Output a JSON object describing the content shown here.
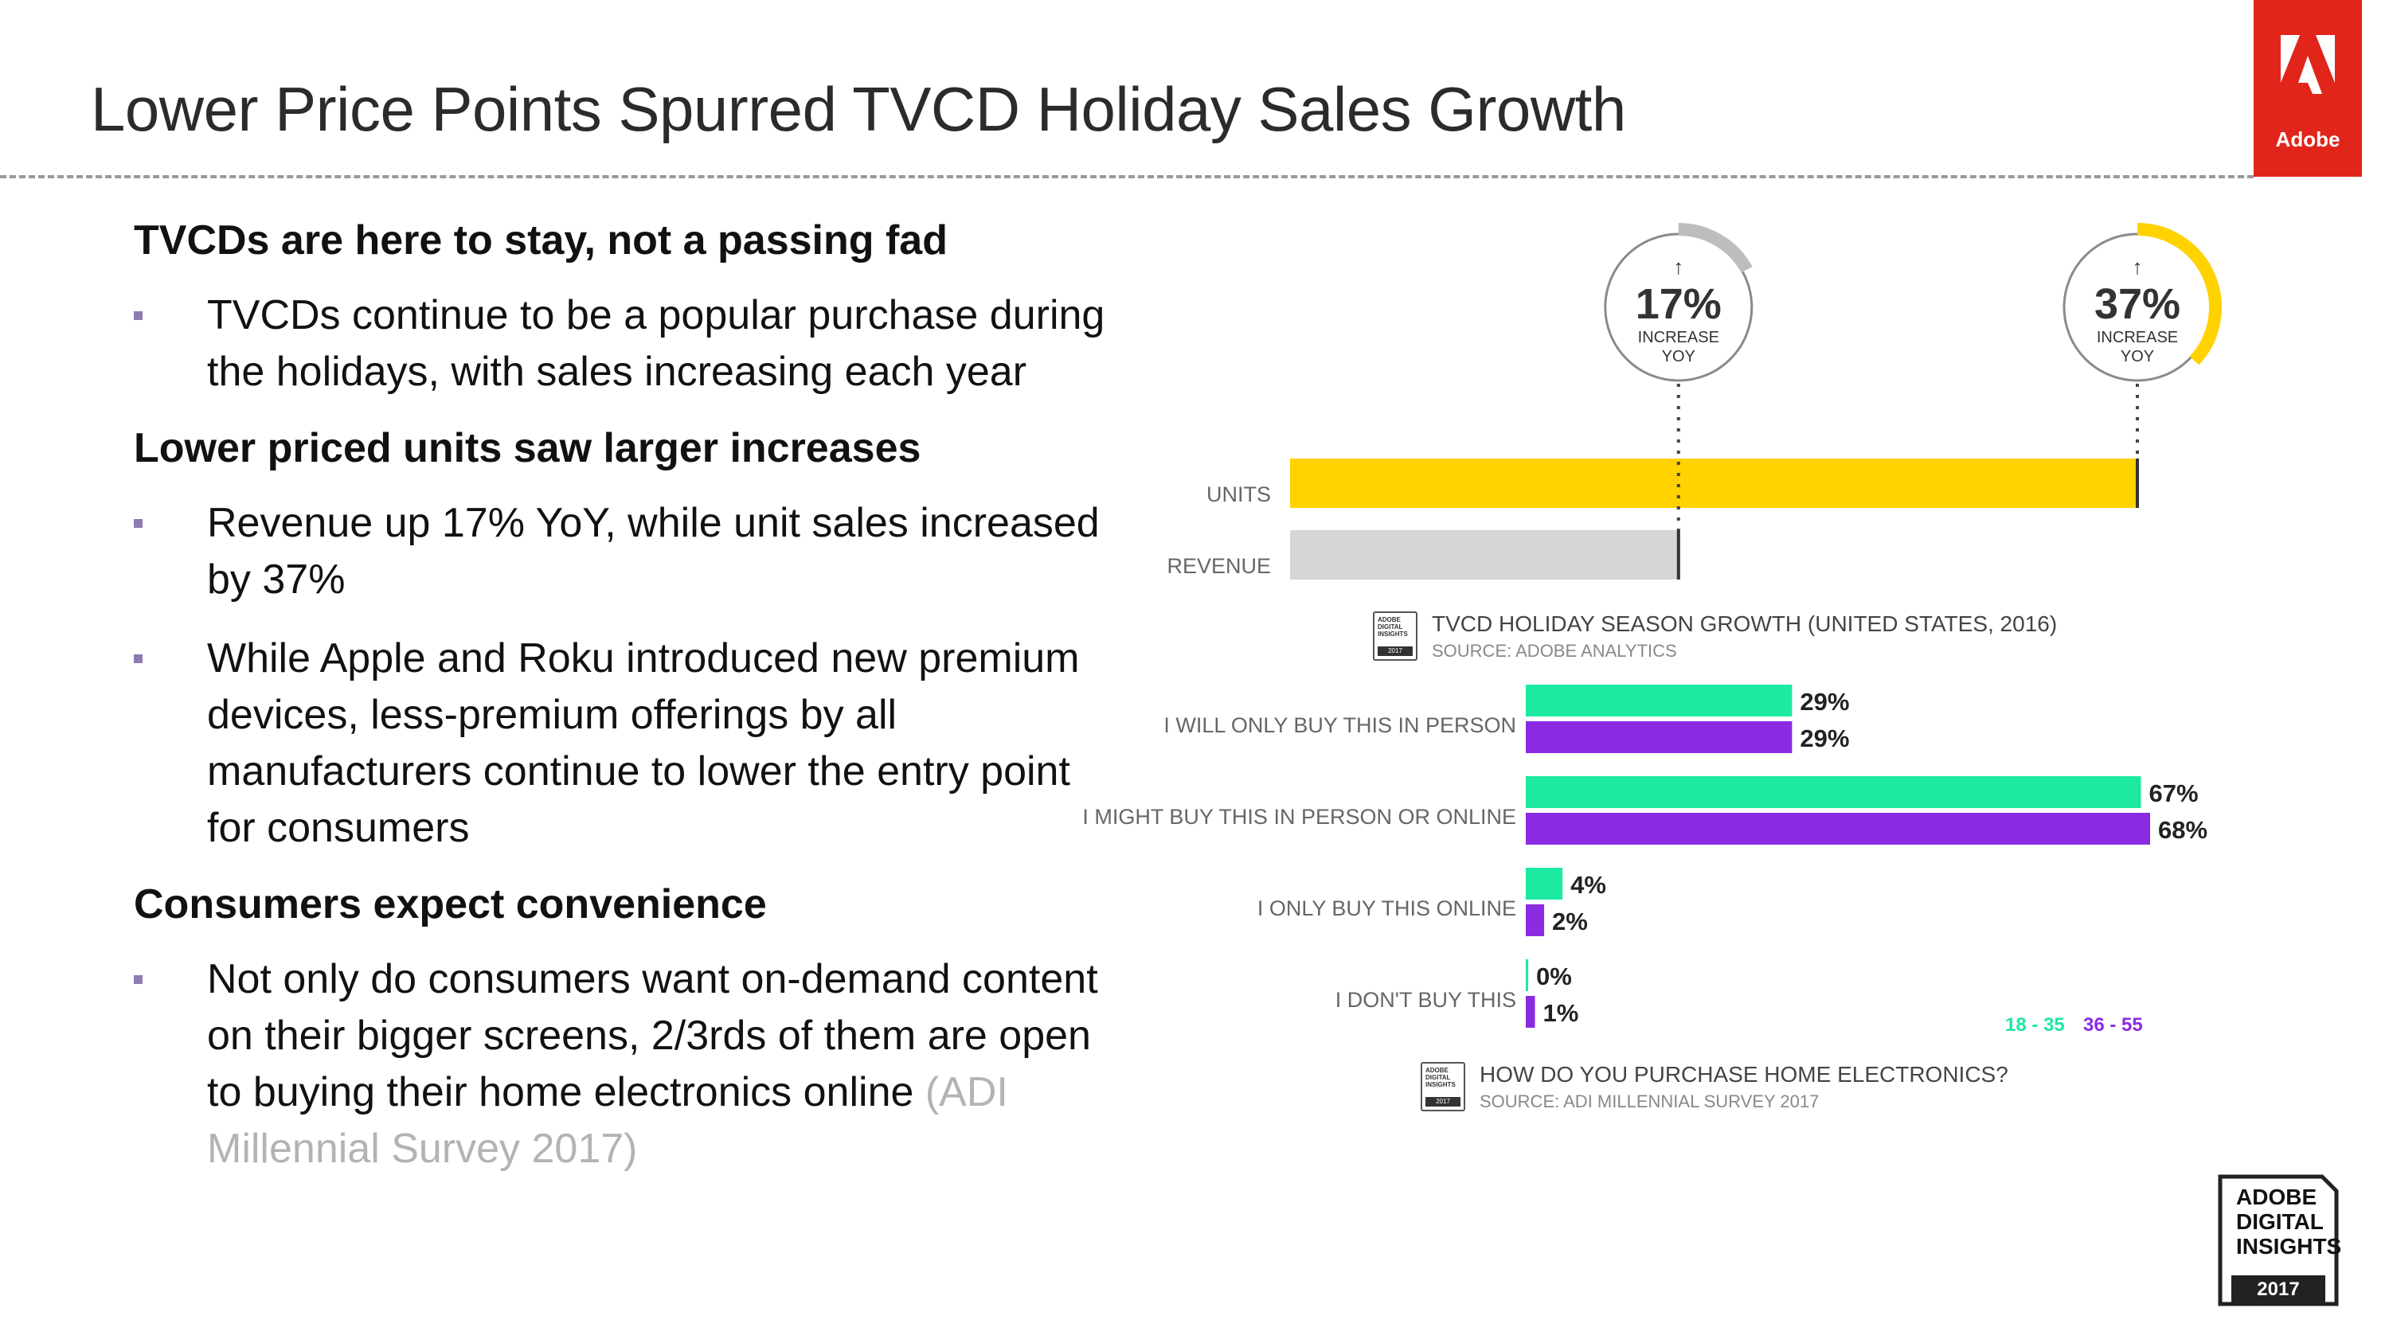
{
  "slide": {
    "title": "Lower Price Points Spurred TVCD Holiday Sales Growth",
    "brand": "Adobe"
  },
  "left": {
    "heading1": "TVCDs are here to stay, not a passing fad",
    "bullet1": "TVCDs continue to be a popular purchase during the holidays, with sales increasing each year",
    "heading2": "Lower priced units saw larger increases",
    "bullet2": "Revenue up 17% YoY, while unit sales increased by 37%",
    "bullet3": "While Apple and Roku introduced new premium devices, less-premium offerings by all manufacturers continue to lower the entry point for consumers",
    "heading3": "Consumers expect convenience",
    "bullet4": "Not only do consumers want on-demand content on their bigger screens, 2/3rds of them are open to buying their home electronics online",
    "bullet4_source": "(ADI Millennial Survey 2017)"
  },
  "chart_data": [
    {
      "type": "bar",
      "orientation": "horizontal",
      "title": "TVCD HOLIDAY SEASON GROWTH (UNITED STATES, 2016)",
      "source": "SOURCE: ADOBE ANALYTICS",
      "categories": [
        "UNITS",
        "REVENUE"
      ],
      "values": [
        37,
        17
      ],
      "unit": "% increase YoY",
      "colors": [
        "#ffd200",
        "#d6d6d6"
      ],
      "annotations": [
        {
          "target": "UNITS",
          "value": "37%",
          "label_line1": "INCREASE",
          "label_line2": "YOY",
          "arrow": "↑"
        },
        {
          "target": "REVENUE",
          "value": "17%",
          "label_line1": "INCREASE",
          "label_line2": "YOY",
          "arrow": "↑"
        }
      ],
      "xlim": [
        0,
        37
      ]
    },
    {
      "type": "bar",
      "orientation": "horizontal",
      "title": "HOW DO YOU PURCHASE HOME ELECTRONICS?",
      "source": "SOURCE: ADI MILLENNIAL SURVEY 2017",
      "categories": [
        "I WILL ONLY BUY THIS IN PERSON",
        "I MIGHT BUY THIS IN PERSON OR ONLINE",
        "I ONLY BUY THIS ONLINE",
        "I DON'T BUY THIS"
      ],
      "series": [
        {
          "name": "18 - 35",
          "color": "#1de9a0",
          "values": [
            29,
            67,
            4,
            0
          ],
          "labels": [
            "29%",
            "67%",
            "4%",
            "0%"
          ]
        },
        {
          "name": "36 - 55",
          "color": "#8a2be2",
          "values": [
            29,
            68,
            2,
            1
          ],
          "labels": [
            "29%",
            "68%",
            "2%",
            "1%"
          ]
        }
      ],
      "xlim": [
        0,
        68
      ],
      "legend": "bottom-right"
    }
  ],
  "footer_badge": {
    "line1": "ADOBE",
    "line2": "DIGITAL",
    "line3": "INSIGHTS",
    "year": "2017"
  },
  "mini_badge": {
    "line1": "ADOBE",
    "line2": "DIGITAL",
    "line3": "INSIGHTS",
    "year": "2017"
  }
}
